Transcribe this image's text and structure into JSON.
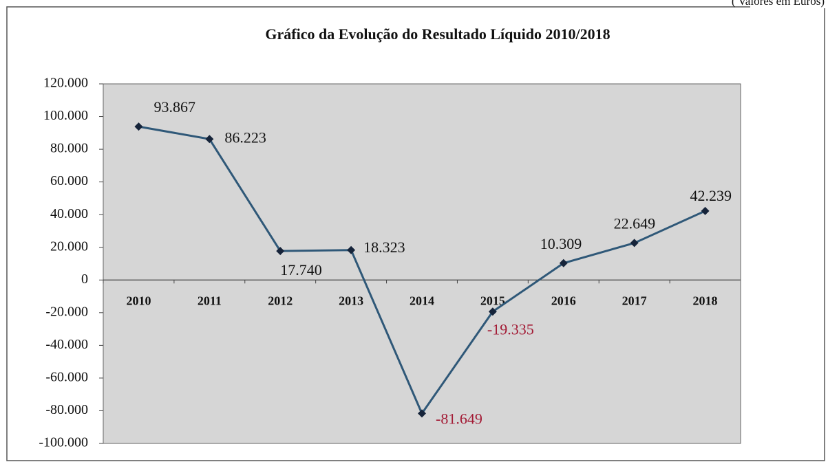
{
  "chart_data": {
    "type": "line",
    "title": "Gráfico da Evolução do Resultado Líquido 2010/2018",
    "subtitle": "( Valores em Euros)",
    "categories": [
      "2010",
      "2011",
      "2012",
      "2013",
      "2014",
      "2015",
      "2016",
      "2017",
      "2018"
    ],
    "series": [
      {
        "name": "Resultado Líquido",
        "color": "#2f5878",
        "marker_color": "#16243a",
        "values": [
          93867,
          86223,
          17740,
          18323,
          -81649,
          -19335,
          10309,
          22649,
          42239
        ],
        "value_labels": [
          "93.867",
          "86.223",
          "17.740",
          "18.323",
          "-81.649",
          "-19.335",
          "10.309",
          "22.649",
          "42.239"
        ]
      }
    ],
    "label_color": "#111111",
    "negative_label_color": "#a31b35",
    "ylim": [
      -100000,
      120000
    ],
    "yticks": [
      {
        "value": -100000,
        "label": "-100.000"
      },
      {
        "value": -80000,
        "label": "-80.000"
      },
      {
        "value": -60000,
        "label": "-60.000"
      },
      {
        "value": -40000,
        "label": "-40.000"
      },
      {
        "value": -20000,
        "label": "-20.000"
      },
      0,
      {
        "value": 20000,
        "label": "20.000"
      },
      {
        "value": 40000,
        "label": "40.000"
      },
      {
        "value": 60000,
        "label": "60.000"
      },
      {
        "value": 80000,
        "label": "80.000"
      },
      {
        "value": 100000,
        "label": "100.000"
      },
      {
        "value": 120000,
        "label": "120.000"
      }
    ],
    "grid": false
  }
}
